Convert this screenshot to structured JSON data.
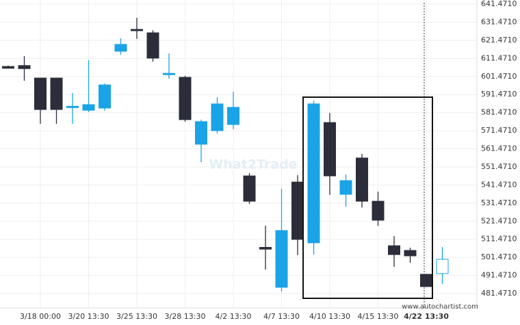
{
  "chart_data": {
    "type": "candlestick",
    "categories": [
      null,
      null,
      "3/18 00:00",
      null,
      null,
      "3/20 13:30",
      null,
      null,
      "3/25 13:30",
      null,
      null,
      "3/28 13:30",
      null,
      null,
      "4/2 13:30",
      null,
      null,
      "4/7 13:30",
      null,
      null,
      "4/10 13:30",
      null,
      null,
      "4/15 13:30",
      null,
      null,
      "4/22 13:30",
      null
    ],
    "open": [
      607,
      607.5,
      600.6,
      600.6,
      585,
      582.8,
      584,
      615.4,
      627.5,
      625.6,
      602.7,
      601,
      564,
      571.5,
      574.9,
      546.5,
      507,
      484.9,
      543.1,
      509.5,
      576,
      536.3,
      556.4,
      532.5,
      507.9,
      505.3,
      492.1,
      492.5
    ],
    "high": [
      607.5,
      612.7,
      600.6,
      600.6,
      592.3,
      610.5,
      597.6,
      622.6,
      633.9,
      627,
      614.2,
      601.8,
      577.6,
      590,
      593,
      548,
      519,
      539.3,
      546.9,
      588.2,
      581.3,
      547.3,
      558.6,
      537.8,
      513.2,
      506.8,
      492.1,
      507.2
    ],
    "low": [
      605.8,
      599.1,
      575.3,
      575.3,
      575.3,
      581.7,
      582.5,
      613.5,
      622.2,
      609.7,
      600.2,
      576.5,
      554.1,
      570,
      572.3,
      531,
      494.7,
      482.6,
      502.7,
      503.1,
      536,
      529.5,
      529,
      518.9,
      496.2,
      498.5,
      485.3,
      486.8
    ],
    "close": [
      606,
      605.8,
      583.2,
      583.2,
      585,
      585.9,
      596.8,
      619.2,
      626.8,
      611.6,
      603.2,
      577.6,
      576.5,
      586.3,
      584.4,
      532.5,
      506,
      516.3,
      511.4,
      586.3,
      546.5,
      543.9,
      532.5,
      522,
      503,
      502.3,
      485.3,
      500.4
    ],
    "up_color": "#1aa3e6",
    "down_color": "#2b2e3a",
    "current_candle_style": "hollow",
    "ylim": [
      473.53,
      643.74
    ],
    "yticks": [
      {
        "value": 481.471,
        "label": "481.4710"
      },
      {
        "value": 491.471,
        "label": "491.4710"
      },
      {
        "value": 501.471,
        "label": "501.4710"
      },
      {
        "value": 511.471,
        "label": "511.4710"
      },
      {
        "value": 521.471,
        "label": "521.4710"
      },
      {
        "value": 531.471,
        "label": "531.4710"
      },
      {
        "value": 541.471,
        "label": "541.4710"
      },
      {
        "value": 551.471,
        "label": "551.4710"
      },
      {
        "value": 561.471,
        "label": "561.4710"
      },
      {
        "value": 571.471,
        "label": "571.4710"
      },
      {
        "value": 581.471,
        "label": "581.4710"
      },
      {
        "value": 591.471,
        "label": "591.4710"
      },
      {
        "value": 601.471,
        "label": "601.4710"
      },
      {
        "value": 611.471,
        "label": "611.4710"
      },
      {
        "value": 621.471,
        "label": "621.4710"
      },
      {
        "value": 631.471,
        "label": "631.4710"
      },
      {
        "value": 641.471,
        "label": "641.4710"
      }
    ],
    "grid": true,
    "watermark": "What2Trade",
    "source": "www.autochartist.com"
  }
}
